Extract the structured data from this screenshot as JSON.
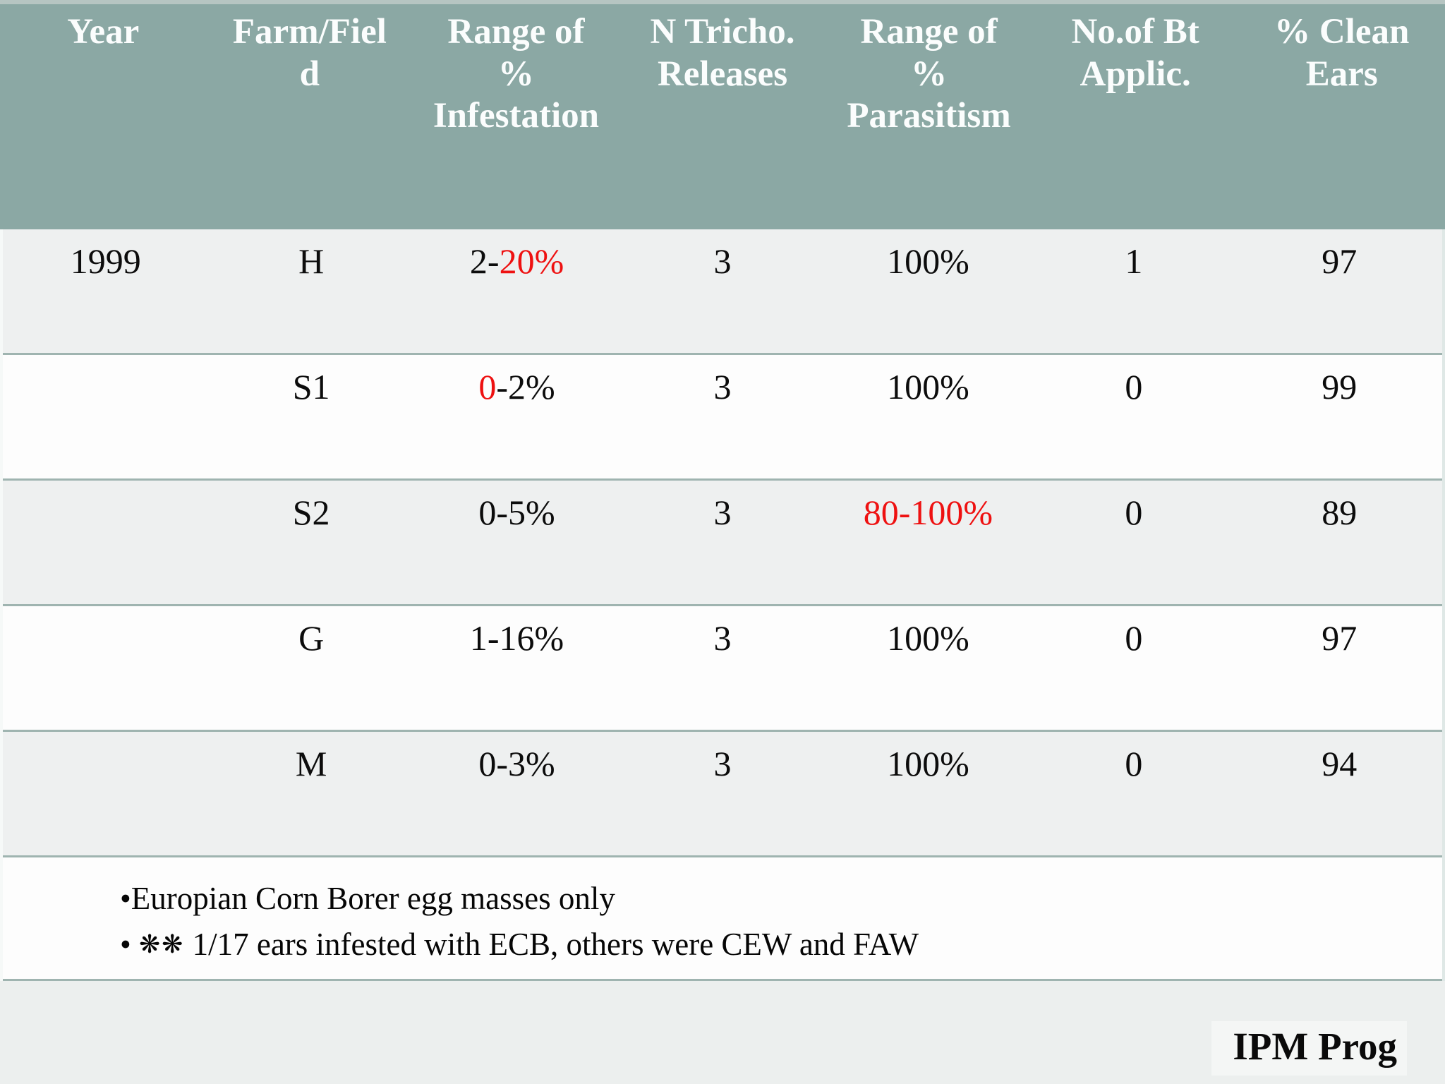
{
  "table": {
    "headers": [
      "Year",
      "Farm/Field",
      "Range of % Infestation",
      "N Tricho. Releases",
      "Range of % Parasitism",
      "No.of Bt Applic.",
      "% Clean Ears"
    ],
    "rows": [
      {
        "year": "1999",
        "field": "H",
        "infestation": {
          "pre": "2-",
          "red": "20%",
          "post": ""
        },
        "releases": "3",
        "parasitism": {
          "pre": "100%",
          "red": ""
        },
        "bt": "1",
        "clean": "97"
      },
      {
        "year": "",
        "field": "S1",
        "infestation": {
          "pre": "",
          "red": "0",
          "post": "-2%"
        },
        "releases": "3",
        "parasitism": {
          "pre": "100%",
          "red": ""
        },
        "bt": "0",
        "clean": "99"
      },
      {
        "year": "",
        "field": "S2",
        "infestation": {
          "pre": "0-5%",
          "red": "",
          "post": ""
        },
        "releases": "3",
        "parasitism": {
          "pre": "",
          "red": "80-100%"
        },
        "bt": "0",
        "clean": "89"
      },
      {
        "year": "",
        "field": "G",
        "infestation": {
          "pre": "1-16%",
          "red": "",
          "post": ""
        },
        "releases": "3",
        "parasitism": {
          "pre": "100%",
          "red": ""
        },
        "bt": "0",
        "clean": "97"
      },
      {
        "year": "",
        "field": "M",
        "infestation": {
          "pre": "0-3%",
          "red": "",
          "post": ""
        },
        "releases": "3",
        "parasitism": {
          "pre": "100%",
          "red": ""
        },
        "bt": "0",
        "clean": "94"
      }
    ]
  },
  "notes": {
    "line1": "•Europian Corn Borer egg masses only",
    "line2_bullet": "• ",
    "line2_marker": "❋❋",
    "line2_text": " 1/17 ears infested with ECB, others were CEW and FAW"
  },
  "footer": {
    "label": "IPM Prog"
  },
  "colors": {
    "header_bg": "#8BA8A4",
    "row_alt_bg": "#EEF0F0",
    "row_plain_bg": "#FDFDFD",
    "row_border": "#9FB4B0",
    "highlight_red": "#EE1111",
    "footer_bg": "#ECEFEE",
    "header_text": "#FBFDFD"
  }
}
